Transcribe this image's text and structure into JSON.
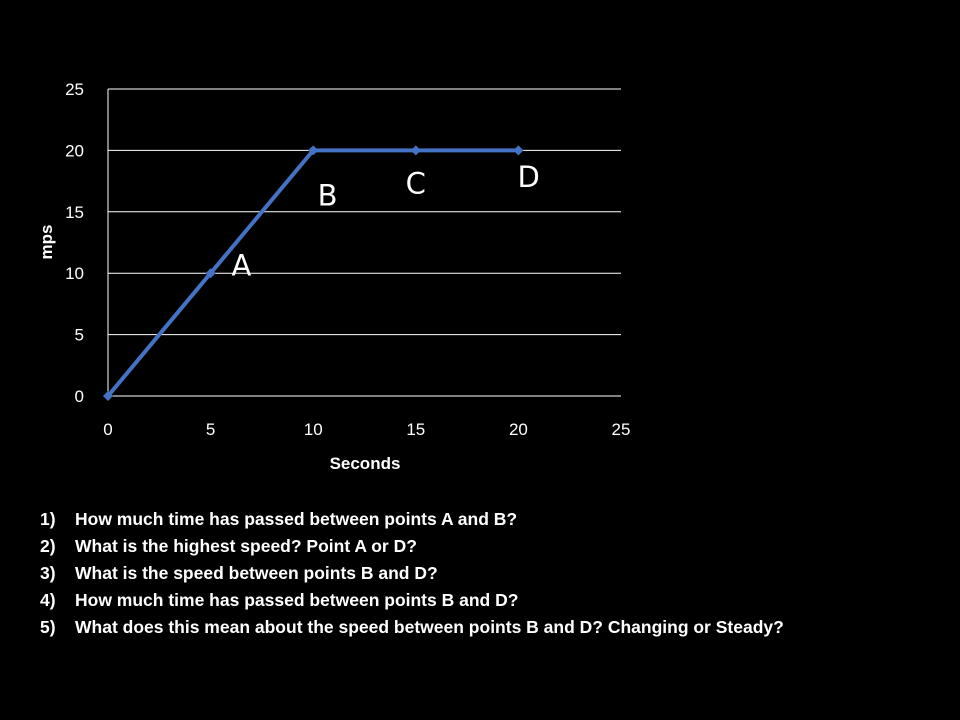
{
  "chart_data": {
    "type": "line",
    "title": "",
    "xlabel": "Seconds",
    "ylabel": "mps",
    "xlim": [
      0,
      25
    ],
    "ylim": [
      0,
      25
    ],
    "xticks": [
      0,
      5,
      10,
      15,
      20,
      25
    ],
    "yticks": [
      0,
      5,
      10,
      15,
      20,
      25
    ],
    "grid": "horizontal",
    "legend": "none",
    "series": [
      {
        "color": "#4472C4",
        "marker": "diamond",
        "x": [
          0,
          5,
          10,
          15,
          20
        ],
        "y": [
          0,
          10,
          20,
          20,
          20
        ]
      }
    ],
    "annotations": [
      {
        "text": "A",
        "x": 6.5,
        "y": 9.8
      },
      {
        "text": "B",
        "x": 10.7,
        "y": 15.5
      },
      {
        "text": "C",
        "x": 15,
        "y": 16.5
      },
      {
        "text": "D",
        "x": 20.5,
        "y": 17
      }
    ]
  },
  "questions": [
    {
      "number": "1)",
      "text": "How much time has passed between points A and B?"
    },
    {
      "number": "2)",
      "text": "What is the highest speed? Point A or D?"
    },
    {
      "number": "3)",
      "text": "What is the speed between points B and D?"
    },
    {
      "number": "4)",
      "text": "How much time has passed between points B and D?"
    },
    {
      "number": "5)",
      "text": "What does this mean about the speed between points B and D? Changing or Steady?"
    }
  ]
}
